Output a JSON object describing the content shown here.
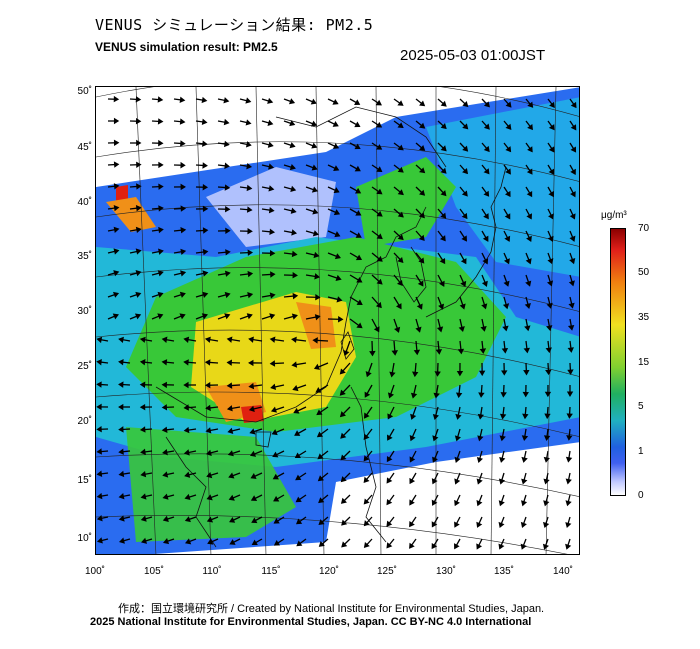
{
  "header": {
    "title_jp": "VENUS シミュレーション結果: PM2.5",
    "title_en": "VENUS simulation result: PM2.5",
    "timestamp": "2025-05-03 01:00JST"
  },
  "map": {
    "lat_labels": [
      "50˚",
      "45˚",
      "40˚",
      "35˚",
      "30˚",
      "25˚",
      "20˚",
      "15˚",
      "10˚"
    ],
    "lon_labels": [
      "100˚",
      "105˚",
      "110˚",
      "115˚",
      "120˚",
      "125˚",
      "130˚",
      "135˚",
      "140˚"
    ],
    "colors": {
      "low": "#c8d0ff",
      "blue": "#2a6cf0",
      "cyan": "#22b8d8",
      "green": "#38c838",
      "yellow": "#e8d818",
      "orange": "#f09018",
      "red": "#e02010"
    }
  },
  "colorbar": {
    "unit": "μg/m³",
    "ticks": [
      "70",
      "50",
      "35",
      "15",
      "5",
      "1",
      "0"
    ]
  },
  "credits": {
    "line1": "作成：国立環境研究所 / Created by National Institute for Environmental Studies, Japan.",
    "line2": "2025 National Institute for Environmental Studies, Japan. CC BY-NC 4.0 International"
  }
}
